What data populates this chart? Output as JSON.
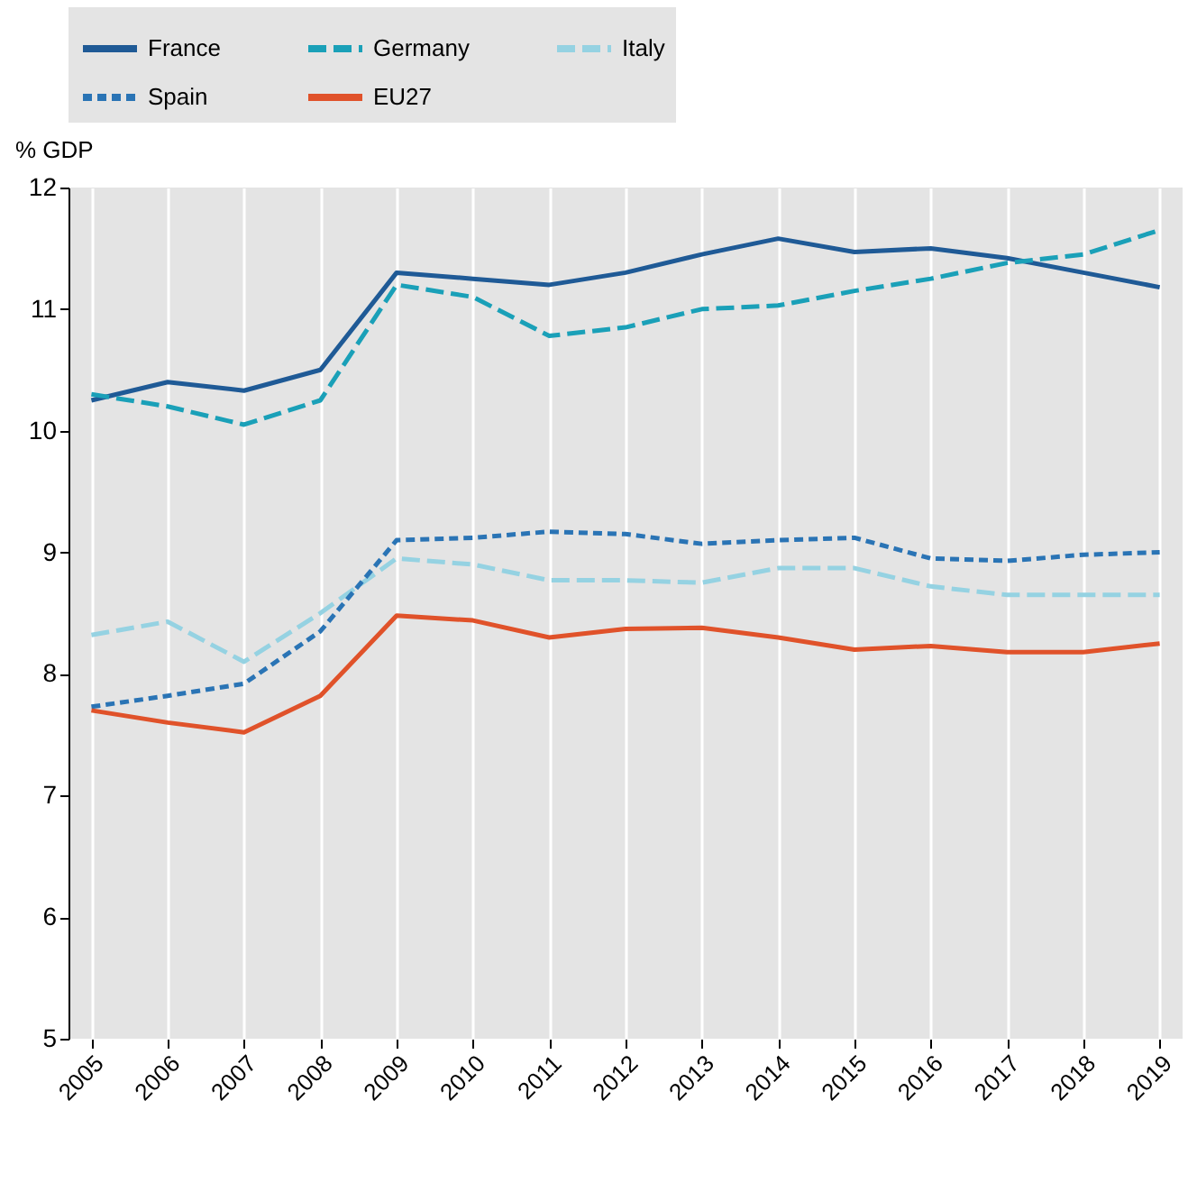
{
  "chart_data": {
    "type": "line",
    "ylabel": "% GDP",
    "categories": [
      "2005",
      "2006",
      "2007",
      "2008",
      "2009",
      "2010",
      "2011",
      "2012",
      "2013",
      "2014",
      "2015",
      "2016",
      "2017",
      "2018",
      "2019"
    ],
    "ylim": [
      5,
      12
    ],
    "yticks": [
      5,
      6,
      7,
      8,
      9,
      10,
      11,
      12
    ],
    "grid": "x",
    "legend": "top",
    "series": [
      {
        "name": "France",
        "color": "#1f5a96",
        "line_style": "solid",
        "values": [
          10.25,
          10.4,
          10.33,
          10.5,
          11.3,
          11.25,
          11.2,
          11.3,
          11.45,
          11.58,
          11.47,
          11.5,
          11.42,
          11.3,
          11.18
        ]
      },
      {
        "name": "Germany",
        "color": "#1aa0b8",
        "line_style": "dashed",
        "values": [
          10.3,
          10.2,
          10.05,
          10.25,
          11.2,
          11.1,
          10.78,
          10.85,
          11.0,
          11.03,
          11.15,
          11.25,
          11.38,
          11.45,
          11.65
        ]
      },
      {
        "name": "Italy",
        "color": "#95d2e2",
        "line_style": "dashed",
        "values": [
          8.32,
          8.43,
          8.1,
          8.5,
          8.95,
          8.9,
          8.77,
          8.77,
          8.75,
          8.87,
          8.87,
          8.72,
          8.65,
          8.65,
          8.65
        ]
      },
      {
        "name": "Spain",
        "color": "#2a74b5",
        "line_style": "dotted",
        "values": [
          7.73,
          7.82,
          7.92,
          8.35,
          9.1,
          9.12,
          9.17,
          9.15,
          9.07,
          9.1,
          9.12,
          8.95,
          8.93,
          8.98,
          9.0
        ]
      },
      {
        "name": "EU27",
        "color": "#e0522a",
        "line_style": "solid",
        "values": [
          7.7,
          7.6,
          7.52,
          7.82,
          8.48,
          8.44,
          8.3,
          8.37,
          8.38,
          8.3,
          8.2,
          8.23,
          8.18,
          8.18,
          8.25
        ]
      }
    ]
  }
}
